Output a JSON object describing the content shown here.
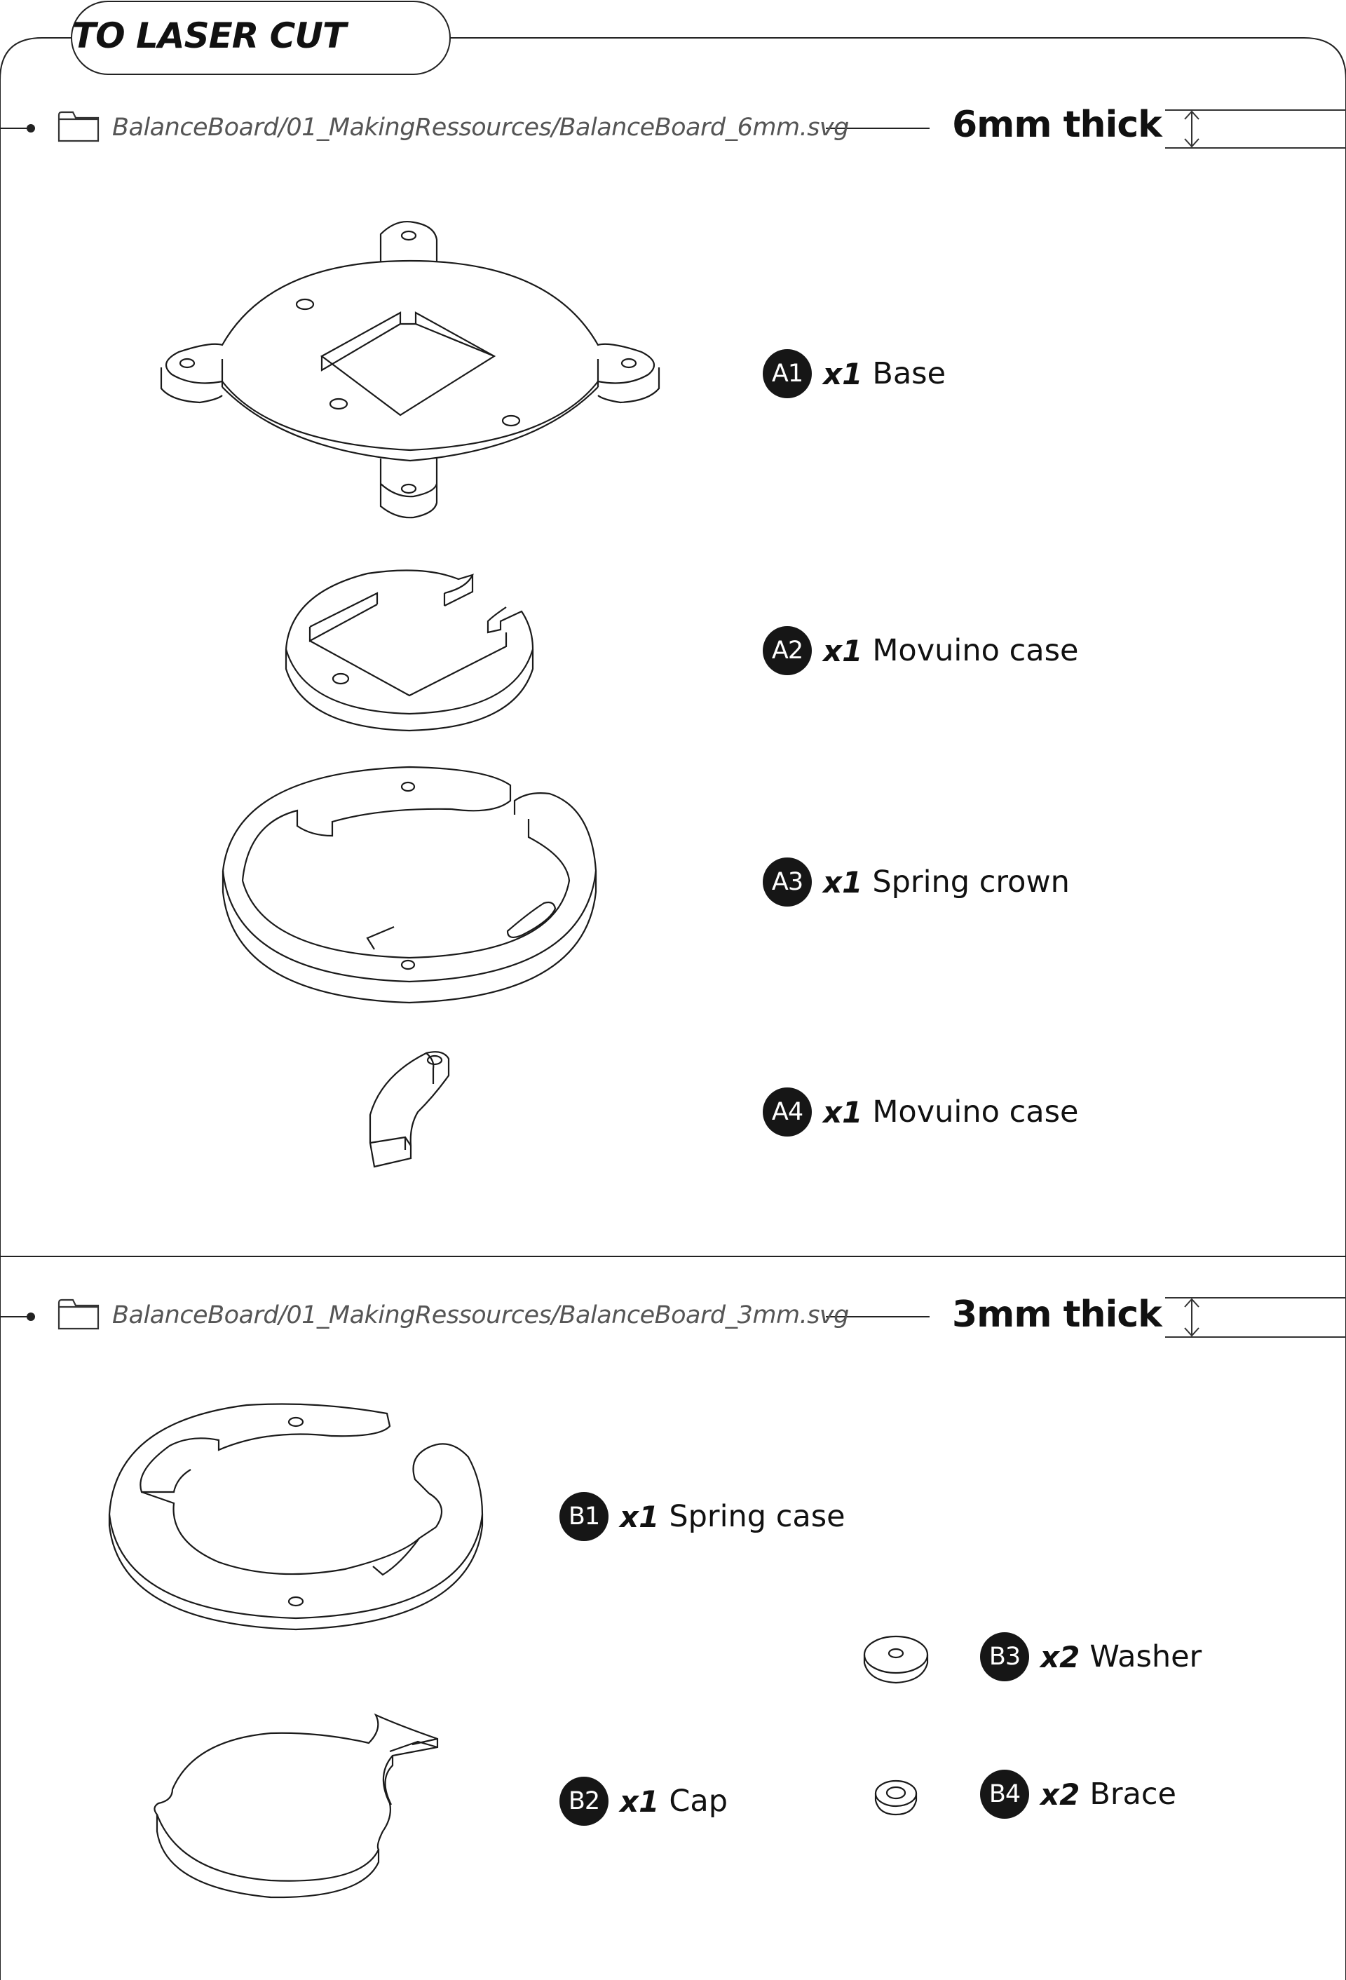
{
  "header": {
    "title": "TO LASER CUT"
  },
  "sections": [
    {
      "path": "BalanceBoard/01_MakingRessources/BalanceBoard_6mm.svg",
      "thickness": "6mm thick",
      "parts": [
        {
          "badge": "A1",
          "qty": "x1",
          "name": "Base"
        },
        {
          "badge": "A2",
          "qty": "x1",
          "name": "Movuino case"
        },
        {
          "badge": "A3",
          "qty": "x1",
          "name": "Spring crown"
        },
        {
          "badge": "A4",
          "qty": "x1",
          "name": "Movuino case"
        }
      ]
    },
    {
      "path": "BalanceBoard/01_MakingRessources/BalanceBoard_3mm.svg",
      "thickness": "3mm thick",
      "parts": [
        {
          "badge": "B1",
          "qty": "x1",
          "name": "Spring case"
        },
        {
          "badge": "B2",
          "qty": "x1",
          "name": "Cap"
        },
        {
          "badge": "B3",
          "qty": "x2",
          "name": "Washer"
        },
        {
          "badge": "B4",
          "qty": "x2",
          "name": "Brace"
        }
      ]
    }
  ],
  "icons": {
    "folder": "folder-icon",
    "thickness": "thickness-dimension-icon",
    "bullet": "connector-dot-icon"
  }
}
